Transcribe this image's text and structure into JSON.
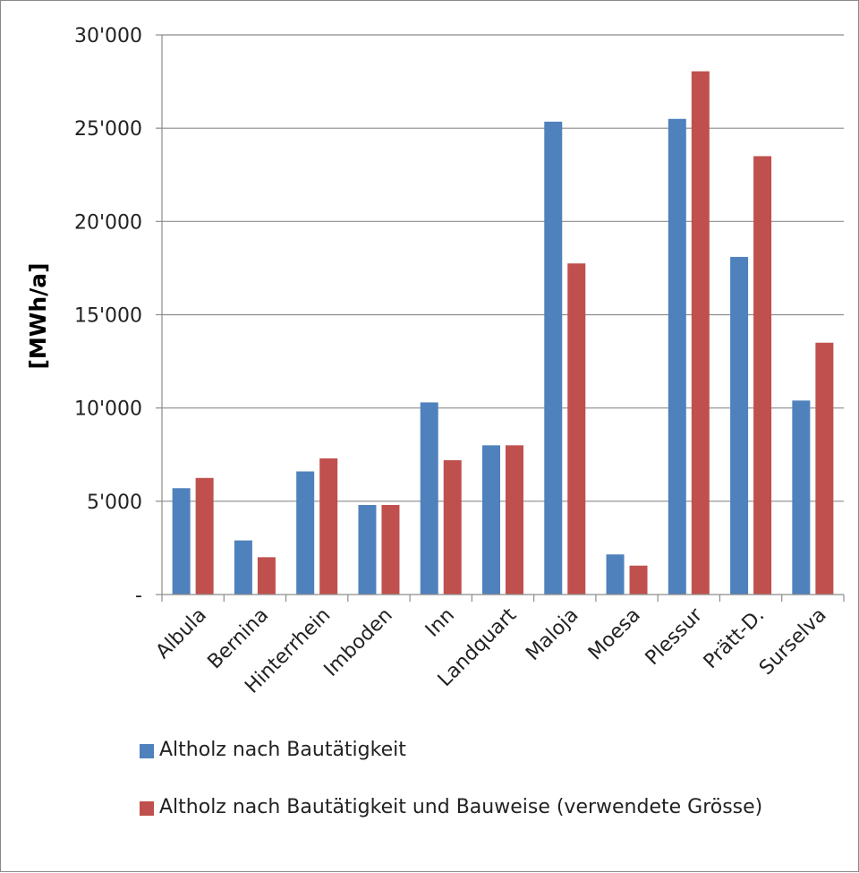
{
  "chart_data": {
    "type": "bar",
    "title": "",
    "xlabel": "",
    "ylabel": "[MWh/a]",
    "ylim": [
      0,
      30000
    ],
    "yticks": [
      0,
      5000,
      10000,
      15000,
      20000,
      25000,
      30000
    ],
    "ytick_labels": [
      "-",
      "5'000",
      "10'000",
      "15'000",
      "20'000",
      "25'000",
      "30'000"
    ],
    "grid": true,
    "legend_position": "bottom",
    "categories": [
      "Albula",
      "Bernina",
      "Hinterrhein",
      "Imboden",
      "Inn",
      "Landquart",
      "Maloja",
      "Moesa",
      "Plessur",
      "Prätt-D.",
      "Surselva"
    ],
    "series": [
      {
        "name": "Altholz nach Bautätigkeit",
        "color": "#4F81BD",
        "values": [
          5700,
          2900,
          6600,
          4800,
          10300,
          8000,
          25350,
          2150,
          25500,
          18100,
          10400
        ]
      },
      {
        "name": "Altholz nach Bautätigkeit und Bauweise (verwendete Grösse)",
        "color": "#C0504D",
        "values": [
          6250,
          2000,
          7300,
          4800,
          7200,
          8000,
          17750,
          1550,
          28050,
          23500,
          13500
        ]
      }
    ]
  }
}
